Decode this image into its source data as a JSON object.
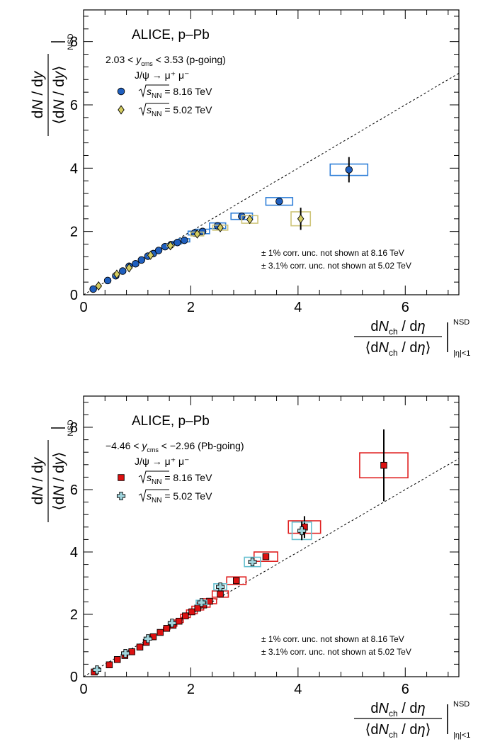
{
  "chart_data": [
    {
      "type": "scatter",
      "experiment_label": "ALICE, p–Pb",
      "rapidity_label": "2.03 < y_cms < 3.53 (p-going)",
      "rapidity_pre": "2.03 < ",
      "rapidity_var": "y",
      "rapidity_sub": "cms",
      "rapidity_post": " < 3.53 (p-going)",
      "channel_label": "J/ψ → μ⁺ μ⁻",
      "xlabel": "dN_ch / dη / ⟨dN_ch / dη⟩ |NSD |η|<1",
      "ylabel": "dN / dy / ⟨dN / dy⟩ |NSD",
      "xlim": [
        0,
        7
      ],
      "ylim": [
        0,
        9
      ],
      "x_ticks": [
        "0",
        "2",
        "4",
        "6"
      ],
      "y_ticks": [
        "0",
        "2",
        "4",
        "6",
        "8"
      ],
      "grid": false,
      "legend_position": "top-left",
      "notes": [
        "± 1% corr. unc. not shown at 8.16 TeV",
        "± 3.1% corr. unc. not shown at 5.02 TeV"
      ],
      "reference_line": {
        "style": "dashed",
        "slope": 1
      },
      "series": [
        {
          "name": "√s_NN = 8.16 TeV",
          "legend_value": " = 8.16 TeV",
          "marker": "circle",
          "color": "#1f5fbf",
          "box_color": "#2f7fd8",
          "points": [
            {
              "x": 0.18,
              "y": 0.18,
              "ey": 0.02,
              "bx": 0.05,
              "by": 0.02
            },
            {
              "x": 0.45,
              "y": 0.45,
              "ey": 0.02,
              "bx": 0.05,
              "by": 0.02
            },
            {
              "x": 0.6,
              "y": 0.6,
              "ey": 0.02,
              "bx": 0.05,
              "by": 0.02
            },
            {
              "x": 0.73,
              "y": 0.75,
              "ey": 0.02,
              "bx": 0.05,
              "by": 0.02
            },
            {
              "x": 0.85,
              "y": 0.9,
              "ey": 0.02,
              "bx": 0.05,
              "by": 0.02
            },
            {
              "x": 0.97,
              "y": 0.98,
              "ey": 0.02,
              "bx": 0.05,
              "by": 0.02
            },
            {
              "x": 1.08,
              "y": 1.1,
              "ey": 0.02,
              "bx": 0.05,
              "by": 0.02
            },
            {
              "x": 1.2,
              "y": 1.22,
              "ey": 0.02,
              "bx": 0.05,
              "by": 0.02
            },
            {
              "x": 1.3,
              "y": 1.3,
              "ey": 0.02,
              "bx": 0.05,
              "by": 0.02
            },
            {
              "x": 1.4,
              "y": 1.4,
              "ey": 0.02,
              "bx": 0.05,
              "by": 0.02
            },
            {
              "x": 1.52,
              "y": 1.52,
              "ey": 0.02,
              "bx": 0.06,
              "by": 0.03
            },
            {
              "x": 1.63,
              "y": 1.58,
              "ey": 0.02,
              "bx": 0.06,
              "by": 0.03
            },
            {
              "x": 1.75,
              "y": 1.65,
              "ey": 0.02,
              "bx": 0.08,
              "by": 0.04
            },
            {
              "x": 1.88,
              "y": 1.72,
              "ey": 0.02,
              "bx": 0.1,
              "by": 0.05
            },
            {
              "x": 2.07,
              "y": 1.95,
              "ey": 0.03,
              "bx": 0.12,
              "by": 0.06
            },
            {
              "x": 2.22,
              "y": 2.0,
              "ey": 0.03,
              "bx": 0.13,
              "by": 0.07
            },
            {
              "x": 2.5,
              "y": 2.18,
              "ey": 0.04,
              "bx": 0.15,
              "by": 0.09
            },
            {
              "x": 2.95,
              "y": 2.48,
              "ey": 0.05,
              "bx": 0.2,
              "by": 0.1
            },
            {
              "x": 3.65,
              "y": 2.95,
              "ey": 0.07,
              "bx": 0.25,
              "by": 0.12
            },
            {
              "x": 4.95,
              "y": 3.95,
              "ey": 0.4,
              "bx": 0.35,
              "by": 0.18
            }
          ]
        },
        {
          "name": "√s_NN = 5.02 TeV",
          "legend_value": " = 5.02 TeV",
          "marker": "diamond",
          "color": "#d4cc60",
          "box_color": "#cfc57a",
          "points": [
            {
              "x": 0.28,
              "y": 0.28,
              "ey": 0.02,
              "bx": 0.05,
              "by": 0.02
            },
            {
              "x": 0.62,
              "y": 0.65,
              "ey": 0.02,
              "bx": 0.05,
              "by": 0.02
            },
            {
              "x": 0.85,
              "y": 0.85,
              "ey": 0.02,
              "bx": 0.05,
              "by": 0.02
            },
            {
              "x": 1.25,
              "y": 1.25,
              "ey": 0.02,
              "bx": 0.05,
              "by": 0.02
            },
            {
              "x": 1.62,
              "y": 1.55,
              "ey": 0.02,
              "bx": 0.06,
              "by": 0.03
            },
            {
              "x": 2.12,
              "y": 1.92,
              "ey": 0.04,
              "bx": 0.12,
              "by": 0.06
            },
            {
              "x": 2.55,
              "y": 2.12,
              "ey": 0.05,
              "bx": 0.14,
              "by": 0.08
            },
            {
              "x": 3.1,
              "y": 2.38,
              "ey": 0.08,
              "bx": 0.15,
              "by": 0.12
            },
            {
              "x": 4.05,
              "y": 2.4,
              "ey": 0.35,
              "bx": 0.18,
              "by": 0.22
            }
          ]
        }
      ]
    },
    {
      "type": "scatter",
      "experiment_label": "ALICE, p–Pb",
      "rapidity_label": "−4.46 < y_cms < −2.96 (Pb-going)",
      "rapidity_pre": "−4.46 < ",
      "rapidity_var": "y",
      "rapidity_sub": "cms",
      "rapidity_post": " < −2.96 (Pb-going)",
      "channel_label": "J/ψ → μ⁺ μ⁻",
      "xlabel": "dN_ch / dη / ⟨dN_ch / dη⟩ |NSD |η|<1",
      "ylabel": "dN / dy / ⟨dN / dy⟩ |NSD",
      "xlim": [
        0,
        7
      ],
      "ylim": [
        0,
        9
      ],
      "x_ticks": [
        "0",
        "2",
        "4",
        "6"
      ],
      "y_ticks": [
        "0",
        "2",
        "4",
        "6",
        "8"
      ],
      "grid": false,
      "legend_position": "top-left",
      "notes": [
        "± 1% corr. unc. not shown at 8.16 TeV",
        "± 3.1% corr. unc. not shown at 5.02 TeV"
      ],
      "reference_line": {
        "style": "dashed",
        "slope": 1
      },
      "series": [
        {
          "name": "√s_NN = 8.16 TeV",
          "legend_value": " = 8.16 TeV",
          "marker": "square",
          "color": "#dd1111",
          "box_color": "#e02020",
          "points": [
            {
              "x": 0.2,
              "y": 0.15,
              "ey": 0.02,
              "bx": 0.05,
              "by": 0.02
            },
            {
              "x": 0.48,
              "y": 0.38,
              "ey": 0.02,
              "bx": 0.05,
              "by": 0.02
            },
            {
              "x": 0.63,
              "y": 0.55,
              "ey": 0.02,
              "bx": 0.05,
              "by": 0.02
            },
            {
              "x": 0.77,
              "y": 0.68,
              "ey": 0.02,
              "bx": 0.05,
              "by": 0.02
            },
            {
              "x": 0.9,
              "y": 0.8,
              "ey": 0.02,
              "bx": 0.05,
              "by": 0.02
            },
            {
              "x": 1.05,
              "y": 0.95,
              "ey": 0.02,
              "bx": 0.05,
              "by": 0.02
            },
            {
              "x": 1.17,
              "y": 1.1,
              "ey": 0.02,
              "bx": 0.05,
              "by": 0.02
            },
            {
              "x": 1.3,
              "y": 1.28,
              "ey": 0.02,
              "bx": 0.05,
              "by": 0.02
            },
            {
              "x": 1.43,
              "y": 1.42,
              "ey": 0.02,
              "bx": 0.05,
              "by": 0.02
            },
            {
              "x": 1.55,
              "y": 1.55,
              "ey": 0.02,
              "bx": 0.06,
              "by": 0.03
            },
            {
              "x": 1.67,
              "y": 1.65,
              "ey": 0.02,
              "bx": 0.07,
              "by": 0.03
            },
            {
              "x": 1.78,
              "y": 1.78,
              "ey": 0.02,
              "bx": 0.08,
              "by": 0.04
            },
            {
              "x": 1.9,
              "y": 1.95,
              "ey": 0.03,
              "bx": 0.09,
              "by": 0.05
            },
            {
              "x": 2.02,
              "y": 2.08,
              "ey": 0.03,
              "bx": 0.1,
              "by": 0.06
            },
            {
              "x": 2.13,
              "y": 2.2,
              "ey": 0.03,
              "bx": 0.11,
              "by": 0.06
            },
            {
              "x": 2.24,
              "y": 2.3,
              "ey": 0.04,
              "bx": 0.12,
              "by": 0.07
            },
            {
              "x": 2.35,
              "y": 2.42,
              "ey": 0.04,
              "bx": 0.13,
              "by": 0.08
            },
            {
              "x": 2.55,
              "y": 2.65,
              "ey": 0.05,
              "bx": 0.15,
              "by": 0.1
            },
            {
              "x": 2.85,
              "y": 3.08,
              "ey": 0.06,
              "bx": 0.18,
              "by": 0.12
            },
            {
              "x": 3.4,
              "y": 3.85,
              "ey": 0.1,
              "bx": 0.22,
              "by": 0.15
            },
            {
              "x": 4.12,
              "y": 4.8,
              "ey": 0.35,
              "bx": 0.3,
              "by": 0.2
            },
            {
              "x": 5.6,
              "y": 6.78,
              "ey": 1.15,
              "bx": 0.45,
              "by": 0.4
            }
          ]
        },
        {
          "name": "√s_NN = 5.02 TeV",
          "legend_value": " = 5.02 TeV",
          "marker": "cross",
          "color": "#9fd4dc",
          "box_color": "#66c0d0",
          "points": [
            {
              "x": 0.25,
              "y": 0.22,
              "ey": 0.02,
              "bx": 0.05,
              "by": 0.02
            },
            {
              "x": 0.78,
              "y": 0.75,
              "ey": 0.02,
              "bx": 0.05,
              "by": 0.02
            },
            {
              "x": 1.2,
              "y": 1.22,
              "ey": 0.02,
              "bx": 0.05,
              "by": 0.02
            },
            {
              "x": 1.65,
              "y": 1.72,
              "ey": 0.03,
              "bx": 0.06,
              "by": 0.04
            },
            {
              "x": 2.2,
              "y": 2.38,
              "ey": 0.05,
              "bx": 0.1,
              "by": 0.07
            },
            {
              "x": 2.55,
              "y": 2.88,
              "ey": 0.06,
              "bx": 0.12,
              "by": 0.1
            },
            {
              "x": 3.15,
              "y": 3.68,
              "ey": 0.1,
              "bx": 0.15,
              "by": 0.15
            },
            {
              "x": 4.07,
              "y": 4.68,
              "ey": 0.3,
              "bx": 0.18,
              "by": 0.28
            }
          ]
        }
      ]
    }
  ]
}
